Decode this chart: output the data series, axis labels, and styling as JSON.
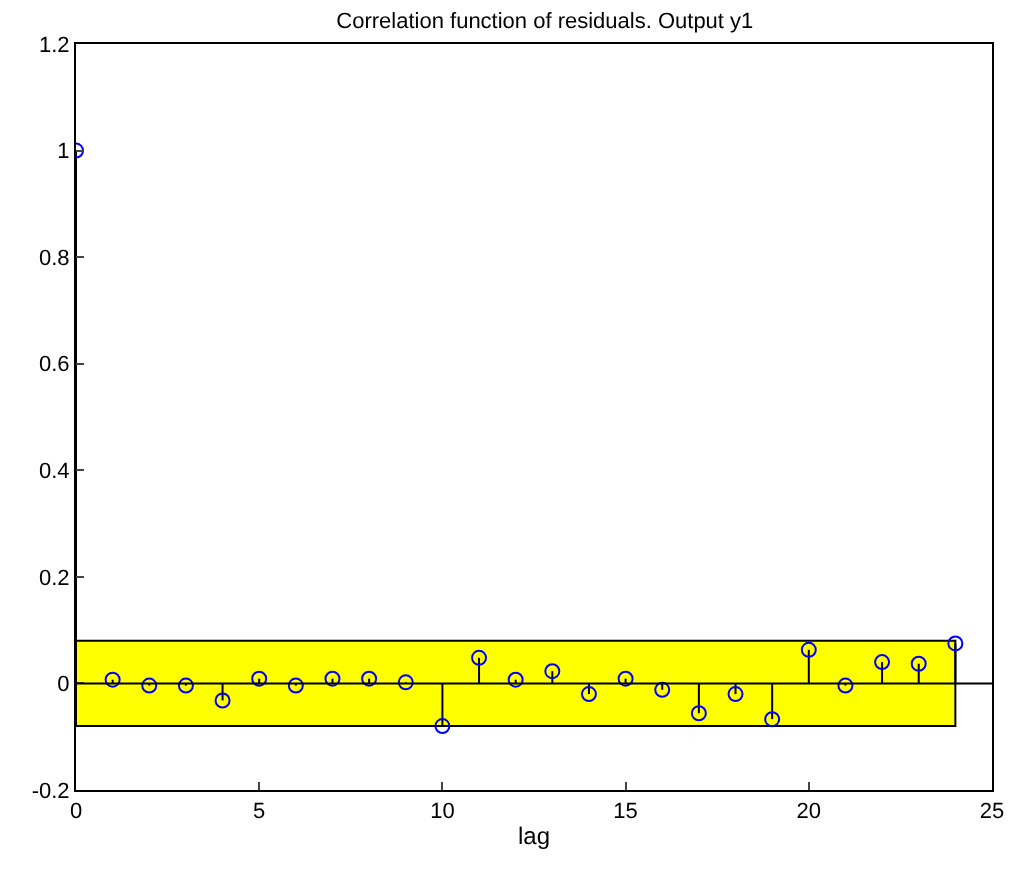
{
  "chart_data": {
    "type": "lollipop",
    "title": "Correlation function of residuals. Output y1",
    "xlabel": "lag",
    "x": [
      0,
      1,
      2,
      3,
      4,
      5,
      6,
      7,
      8,
      9,
      10,
      11,
      12,
      13,
      14,
      15,
      16,
      17,
      18,
      19,
      20,
      21,
      22,
      23,
      24
    ],
    "series": [
      {
        "color": "#0000ff",
        "values": [
          1,
          0.007,
          -0.004,
          -0.004,
          -0.032,
          0.009,
          -0.004,
          0.009,
          0.009,
          0.002,
          -0.08,
          0.048,
          0.007,
          0.023,
          -0.02,
          0.009,
          -0.012,
          -0.056,
          -0.02,
          -0.067,
          0.063,
          -0.004,
          0.04,
          0.037,
          0.075
        ]
      }
    ],
    "bands": [
      {
        "axis": "y",
        "from": -0.08,
        "to": 0.08,
        "color": "#ffff00"
      }
    ],
    "ref_lines": [
      {
        "axis": "y",
        "value": 0,
        "color": "#000000"
      }
    ],
    "marker": "circle",
    "xlim": [
      0,
      25
    ],
    "xticks": [
      0,
      5,
      10,
      15,
      20,
      25
    ],
    "ylim": [
      -0.2,
      1.2
    ],
    "yticks": [
      -0.2,
      0,
      0.2,
      0.4,
      0.6,
      0.8,
      1,
      1.2
    ],
    "grid": false
  }
}
